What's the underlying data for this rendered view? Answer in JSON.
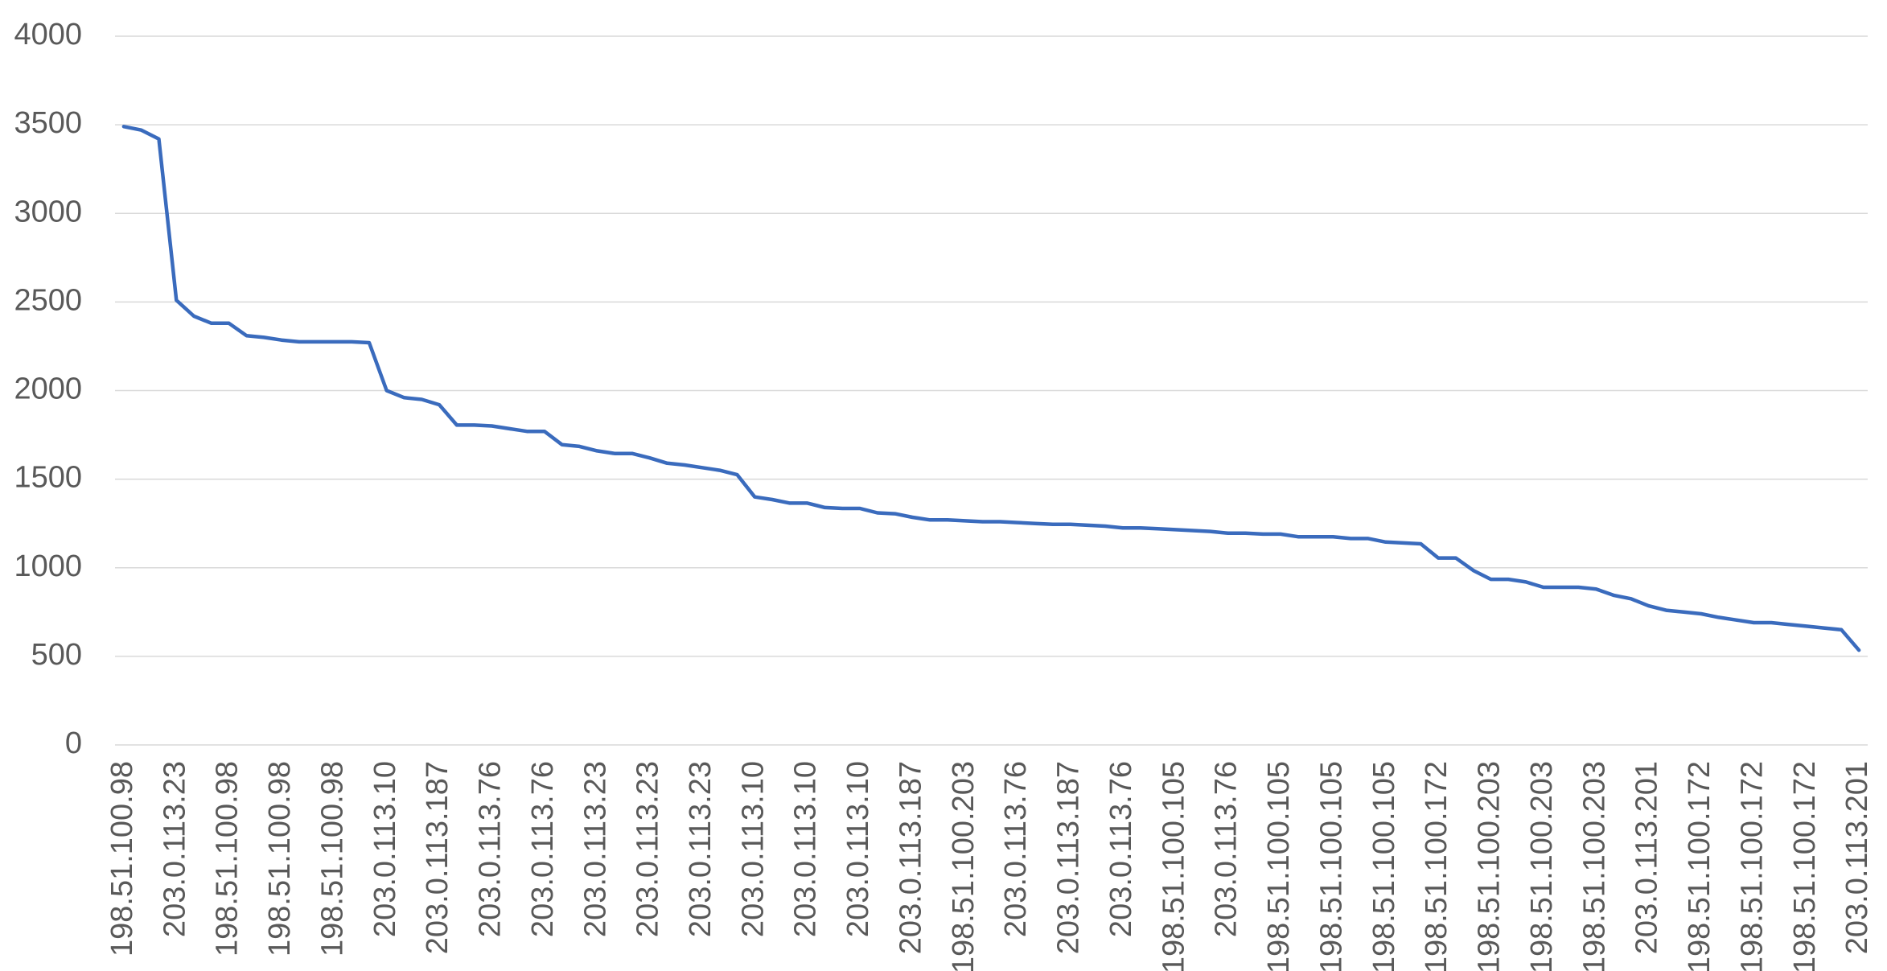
{
  "chart_data": {
    "type": "line",
    "categories": [
      "198.51.100.98",
      null,
      null,
      "203.0.113.23",
      null,
      null,
      "198.51.100.98",
      null,
      null,
      "198.51.100.98",
      null,
      null,
      "198.51.100.98",
      null,
      null,
      "203.0.113.10",
      null,
      null,
      "203.0.113.187",
      null,
      null,
      "203.0.113.76",
      null,
      null,
      "203.0.113.76",
      null,
      null,
      "203.0.113.23",
      null,
      null,
      "203.0.113.23",
      null,
      null,
      "203.0.113.23",
      null,
      null,
      "203.0.113.10",
      null,
      null,
      "203.0.113.10",
      null,
      null,
      "203.0.113.10",
      null,
      null,
      "203.0.113.187",
      null,
      null,
      "198.51.100.203",
      null,
      null,
      "203.0.113.76",
      null,
      null,
      "203.0.113.187",
      null,
      null,
      "203.0.113.76",
      null,
      null,
      "198.51.100.105",
      null,
      null,
      "203.0.113.76",
      null,
      null,
      "198.51.100.105",
      null,
      null,
      "198.51.100.105",
      null,
      null,
      "198.51.100.105",
      null,
      null,
      "198.51.100.172",
      null,
      null,
      "198.51.100.203",
      null,
      null,
      "198.51.100.203",
      null,
      null,
      "198.51.100.203",
      null,
      null,
      "203.0.113.201",
      null,
      null,
      "198.51.100.172",
      null,
      null,
      "198.51.100.172",
      null,
      null,
      "198.51.100.172",
      null,
      null,
      "203.0.113.201"
    ],
    "values": [
      3490,
      3470,
      3420,
      2510,
      2420,
      2380,
      2380,
      2310,
      2300,
      2285,
      2275,
      2275,
      2275,
      2275,
      2270,
      2000,
      1960,
      1950,
      1920,
      1805,
      1805,
      1800,
      1785,
      1770,
      1770,
      1695,
      1685,
      1660,
      1645,
      1645,
      1620,
      1590,
      1580,
      1565,
      1550,
      1525,
      1400,
      1385,
      1365,
      1365,
      1340,
      1335,
      1335,
      1310,
      1305,
      1285,
      1270,
      1270,
      1265,
      1260,
      1260,
      1255,
      1250,
      1245,
      1245,
      1240,
      1235,
      1225,
      1225,
      1220,
      1215,
      1210,
      1205,
      1195,
      1195,
      1190,
      1190,
      1175,
      1175,
      1175,
      1165,
      1165,
      1145,
      1140,
      1135,
      1055,
      1055,
      985,
      935,
      935,
      920,
      890,
      890,
      890,
      880,
      845,
      825,
      785,
      760,
      750,
      740,
      720,
      705,
      690,
      690,
      680,
      670,
      660,
      650,
      535
    ],
    "color": "#3a6bbd",
    "ylim": [
      0,
      4000
    ],
    "yticks": [
      0,
      500,
      1000,
      1500,
      2000,
      2500,
      3000,
      3500,
      4000
    ],
    "grid": true
  }
}
